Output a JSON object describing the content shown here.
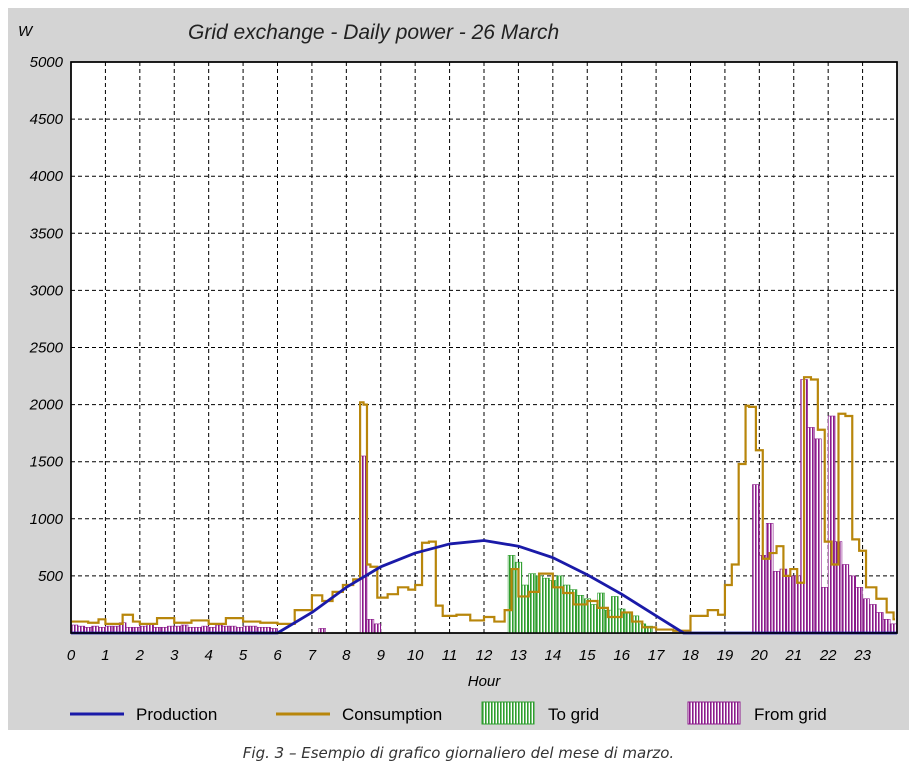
{
  "chart_data": {
    "type": "line",
    "title": "Grid exchange - Daily power - 26 March",
    "ylabel": "W",
    "xlabel": "Hour",
    "xlim": [
      0,
      24
    ],
    "ylim": [
      0,
      5000
    ],
    "x_ticks": [
      "0",
      "1",
      "2",
      "3",
      "4",
      "5",
      "6",
      "7",
      "8",
      "9",
      "10",
      "11",
      "12",
      "13",
      "14",
      "15",
      "16",
      "17",
      "18",
      "19",
      "20",
      "21",
      "22",
      "23"
    ],
    "y_ticks": [
      "500",
      "1000",
      "1500",
      "2000",
      "2500",
      "3000",
      "3500",
      "4000",
      "4500",
      "5000"
    ],
    "grid": true,
    "legend_position": "bottom",
    "colors": {
      "production": "#1a1aa8",
      "consumption": "#b8860b",
      "to_grid": "#2e9e2e",
      "from_grid": "#8b1a8b"
    },
    "series": [
      {
        "name": "Production",
        "kind": "line",
        "x": [
          0,
          6,
          7,
          8,
          9,
          10,
          11,
          12,
          13,
          14,
          15,
          16,
          17,
          17.8,
          24
        ],
        "y": [
          0,
          0,
          180,
          400,
          580,
          700,
          780,
          810,
          760,
          660,
          510,
          340,
          150,
          0,
          0
        ]
      },
      {
        "name": "Consumption",
        "kind": "step",
        "x": [
          0,
          0.5,
          0.8,
          1,
          1.5,
          1.8,
          2,
          2.5,
          3,
          3.5,
          4,
          4.5,
          5,
          5.5,
          6,
          6.5,
          7,
          7.3,
          7.6,
          7.9,
          8.2,
          8.4,
          8.5,
          8.6,
          8.7,
          8.9,
          9.2,
          9.5,
          9.8,
          10,
          10.2,
          10.4,
          10.6,
          10.8,
          11.2,
          11.6,
          12,
          12.3,
          12.6,
          12.8,
          13,
          13.3,
          13.6,
          14,
          14.3,
          14.6,
          15,
          15.3,
          15.6,
          16,
          16.3,
          16.6,
          17,
          17.5,
          18,
          18.5,
          18.8,
          19,
          19.2,
          19.4,
          19.6,
          19.7,
          19.9,
          20.1,
          20.3,
          20.5,
          20.7,
          20.9,
          21.1,
          21.3,
          21.5,
          21.7,
          21.9,
          22.1,
          22.3,
          22.5,
          22.7,
          22.9,
          23.1,
          23.4,
          23.7,
          23.9
        ],
        "y": [
          100,
          90,
          120,
          80,
          160,
          100,
          80,
          130,
          90,
          110,
          80,
          130,
          100,
          90,
          80,
          200,
          330,
          280,
          360,
          420,
          470,
          2020,
          2000,
          600,
          580,
          310,
          340,
          400,
          380,
          420,
          790,
          800,
          240,
          150,
          160,
          110,
          140,
          100,
          200,
          560,
          320,
          360,
          520,
          400,
          350,
          250,
          280,
          220,
          140,
          180,
          100,
          50,
          30,
          20,
          150,
          200,
          160,
          420,
          600,
          1480,
          1990,
          1980,
          1600,
          650,
          700,
          760,
          500,
          560,
          440,
          2240,
          2220,
          1780,
          800,
          600,
          1920,
          1900,
          820,
          720,
          400,
          300,
          180,
          120
        ]
      },
      {
        "name": "To grid",
        "kind": "bars",
        "x": [
          12.8,
          13.0,
          13.2,
          13.4,
          13.6,
          13.8,
          14.0,
          14.2,
          14.4,
          14.6,
          14.8,
          15.0,
          15.2,
          15.4,
          15.6,
          15.8,
          16.0,
          16.2,
          16.4,
          16.6,
          16.8
        ],
        "y": [
          680,
          620,
          420,
          520,
          500,
          480,
          460,
          500,
          420,
          380,
          330,
          300,
          250,
          350,
          200,
          320,
          210,
          180,
          150,
          80,
          60
        ]
      },
      {
        "name": "From grid",
        "kind": "bars",
        "x": [
          0.1,
          0.3,
          0.5,
          0.7,
          0.9,
          1.1,
          1.3,
          1.5,
          1.7,
          1.9,
          2.1,
          2.3,
          2.5,
          2.7,
          2.9,
          3.1,
          3.3,
          3.5,
          3.7,
          3.9,
          4.1,
          4.3,
          4.5,
          4.7,
          4.9,
          5.1,
          5.3,
          5.5,
          5.7,
          5.9,
          7.3,
          8.5,
          8.7,
          8.9,
          19.9,
          20.1,
          20.3,
          20.5,
          20.7,
          20.9,
          21.1,
          21.3,
          21.5,
          21.7,
          21.9,
          22.1,
          22.3,
          22.5,
          22.7,
          22.9,
          23.1,
          23.3,
          23.5,
          23.7,
          23.9
        ],
        "y": [
          70,
          60,
          50,
          60,
          50,
          60,
          60,
          90,
          50,
          50,
          60,
          80,
          50,
          50,
          60,
          60,
          70,
          50,
          50,
          60,
          50,
          70,
          60,
          60,
          50,
          60,
          60,
          50,
          50,
          40,
          40,
          1550,
          120,
          80,
          1300,
          680,
          960,
          540,
          560,
          500,
          500,
          2220,
          1800,
          1700,
          400,
          1900,
          800,
          600,
          500,
          400,
          300,
          250,
          180,
          120,
          80
        ]
      }
    ]
  },
  "caption": "Fig. 3 – Esempio di grafico giornaliero del mese di marzo."
}
